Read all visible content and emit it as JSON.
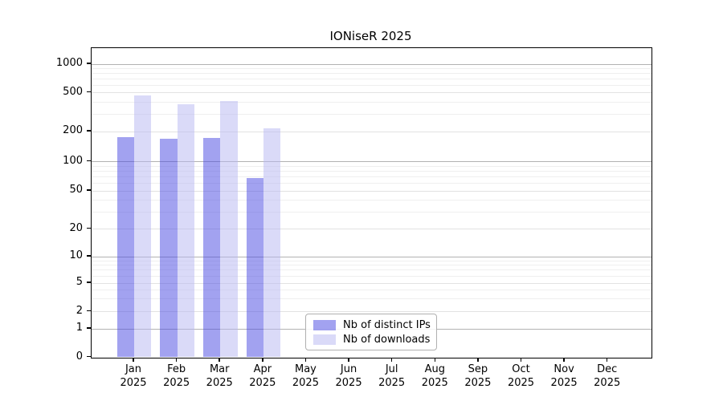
{
  "chart_data": {
    "type": "bar",
    "title": "IONiseR 2025",
    "x_axis": {
      "categories": [
        {
          "month": "Jan",
          "year": "2025"
        },
        {
          "month": "Feb",
          "year": "2025"
        },
        {
          "month": "Mar",
          "year": "2025"
        },
        {
          "month": "Apr",
          "year": "2025"
        },
        {
          "month": "May",
          "year": "2025"
        },
        {
          "month": "Jun",
          "year": "2025"
        },
        {
          "month": "Jul",
          "year": "2025"
        },
        {
          "month": "Aug",
          "year": "2025"
        },
        {
          "month": "Sep",
          "year": "2025"
        },
        {
          "month": "Oct",
          "year": "2025"
        },
        {
          "month": "Nov",
          "year": "2025"
        },
        {
          "month": "Dec",
          "year": "2025"
        }
      ]
    },
    "y_axis": {
      "scale": "symlog",
      "ticks": [
        0,
        1,
        2,
        5,
        10,
        20,
        50,
        100,
        200,
        500,
        1000
      ],
      "major_grid_values": [
        1,
        10,
        100,
        1000
      ],
      "mid_grid_values": [
        2,
        5,
        20,
        50,
        200,
        500
      ],
      "grid": true
    },
    "series": [
      {
        "name": "Nb of distinct IPs",
        "fill": "rgba(69,69,225,0.5)",
        "apparent_color": "#a2a2f0",
        "values": [
          175,
          170,
          174,
          68,
          null,
          null,
          null,
          null,
          null,
          null,
          null,
          null
        ]
      },
      {
        "name": "Nb of downloads",
        "fill": "rgba(181,181,241,0.5)",
        "apparent_color": "#dadaf8",
        "values": [
          465,
          380,
          413,
          215,
          null,
          null,
          null,
          null,
          null,
          null,
          null,
          null
        ]
      }
    ],
    "legend_position": "inside lower-center",
    "grid_colors": {
      "major": "#b2b2b2",
      "mid": "#e2e2e2",
      "minor": "#efefef"
    }
  }
}
